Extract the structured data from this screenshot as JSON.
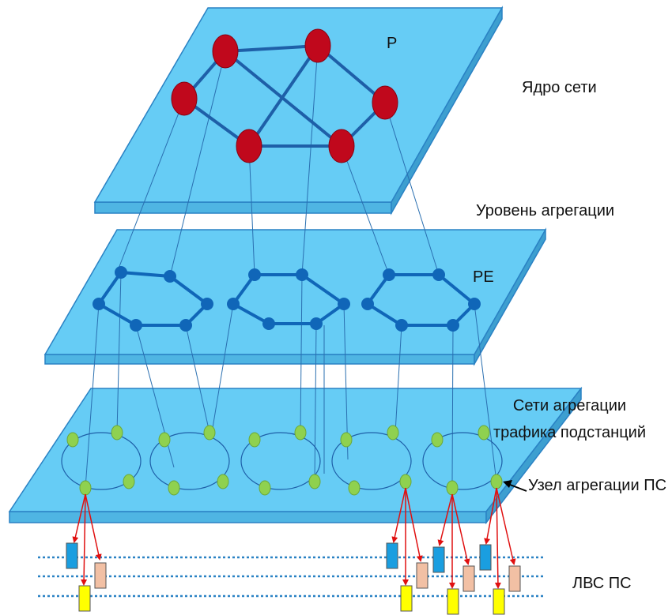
{
  "labels": {
    "core": "Ядро сети",
    "aggregation_level": "Уровень агрегации",
    "substation_net_line1": "Сети агрегации",
    "substation_net_line2": "трафика подстанций",
    "node": "Узел агрегации ПС",
    "lan": "ЛВС ПС",
    "p": "P",
    "pe": "PE"
  },
  "colors": {
    "plane_fill": "#66ccf5",
    "plane_edge": "#2a82c4",
    "core_node": "#c0081c",
    "pe_node": "#1066b8",
    "sub_node": "#8fd14f",
    "lan_switch_blue": "#1a9ee0",
    "lan_switch_peach": "#f2c0a4",
    "lan_switch_yellow": "#ffff00",
    "arrow": "#e01010",
    "lan_line": "#2a82c4"
  }
}
